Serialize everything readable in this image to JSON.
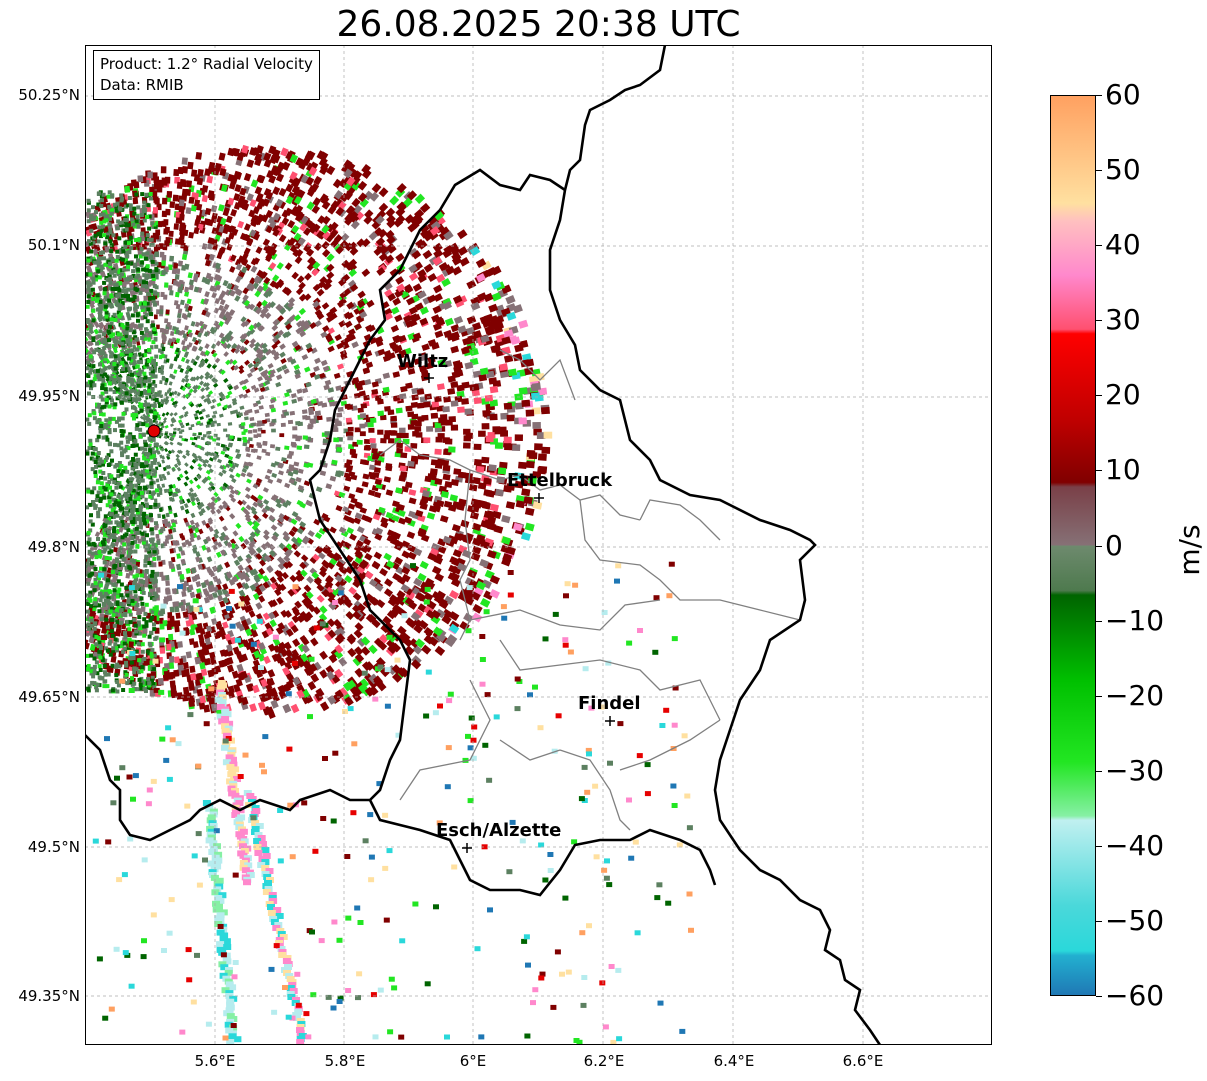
{
  "title": "26.08.2025 20:38 UTC",
  "info": {
    "product": "Product: 1.2° Radial Velocity",
    "data": "Data: RMIB"
  },
  "axes": {
    "lat_ticks": [
      "50.25°N",
      "50.1°N",
      "49.95°N",
      "49.8°N",
      "49.65°N",
      "49.5°N",
      "49.35°N"
    ],
    "lon_ticks": [
      "5.6°E",
      "5.8°E",
      "6°E",
      "6.2°E",
      "6.4°E",
      "6.6°E"
    ]
  },
  "cities": [
    {
      "name": "Wiltz"
    },
    {
      "name": "Ettelbruck"
    },
    {
      "name": "Findel"
    },
    {
      "name": "Esch/Alzette"
    }
  ],
  "colorbar": {
    "label": "m/s",
    "ticks": [
      "60",
      "50",
      "40",
      "30",
      "20",
      "10",
      "0",
      "−10",
      "−20",
      "−30",
      "−40",
      "−50",
      "−60"
    ],
    "range": [
      -60,
      60
    ],
    "colors": {
      "blue": "#1f77b4",
      "cyan": "#2ad8da",
      "light_cyan": "#b6ecee",
      "mint": "#86f0a4",
      "green": "#22e622",
      "dark_green": "#006400",
      "grey_green": "#5c8060",
      "grey_mauve": "#867176",
      "maroon": "#800000",
      "red": "#e60000",
      "pink_red": "#ff5070",
      "pink": "#ff88cc",
      "peach": "#ffe0a0",
      "orange": "#ffa060"
    }
  },
  "radar_marker_color": "#e00000"
}
